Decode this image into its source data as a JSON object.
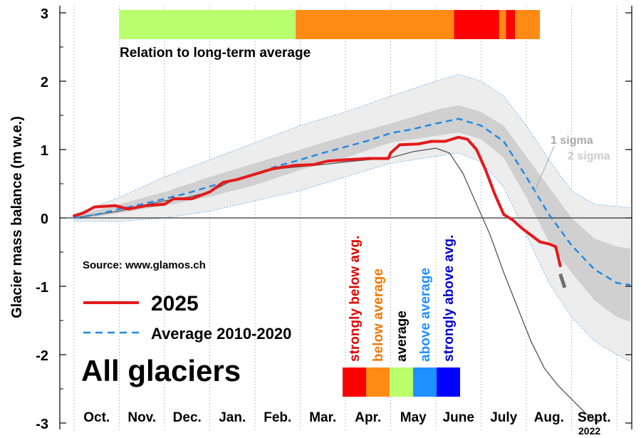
{
  "chart_data": {
    "type": "line",
    "ylabel": "Glacier mass balance (m w.e.)",
    "yticks": [
      3,
      2,
      1,
      0,
      -1,
      -2,
      -3
    ],
    "ylim": [
      -3,
      3
    ],
    "xlim": [
      0,
      12
    ],
    "months": [
      "Oct.",
      "Nov.",
      "Dec.",
      "Jan.",
      "Feb.",
      "Mar.",
      "Apr.",
      "May",
      "June",
      "July",
      "Aug.",
      "Sept."
    ],
    "source": "Source: www.glamos.ch",
    "panel_title": "All glaciers",
    "relation_label": "Relation to long-term average",
    "relation_bar": [
      {
        "from": 1.0,
        "to": 4.9,
        "color": "#b9ff6e"
      },
      {
        "from": 4.9,
        "to": 8.4,
        "color": "#ff8a14"
      },
      {
        "from": 8.4,
        "to": 9.4,
        "color": "#ff0000"
      },
      {
        "from": 9.4,
        "to": 9.55,
        "color": "#ff8a14"
      },
      {
        "from": 9.55,
        "to": 9.75,
        "color": "#ff0000"
      },
      {
        "from": 9.75,
        "to": 10.3,
        "color": "#ff8a14"
      }
    ],
    "sigma_labels": {
      "one": "1 sigma",
      "two": "2 sigma"
    },
    "year_2022_label": "2022",
    "category_legend": [
      {
        "label": "strongly below avg.",
        "color": "#ff0000",
        "text_color": "#e00000"
      },
      {
        "label": "below average",
        "color": "#ff8a14",
        "text_color": "#f07800"
      },
      {
        "label": "average",
        "color": "#b9ff6e",
        "text_color": "#000000"
      },
      {
        "label": "above average",
        "color": "#1e90ff",
        "text_color": "#1e90ff"
      },
      {
        "label": "strongly above avg.",
        "color": "#0000ff",
        "text_color": "#0000cc"
      }
    ],
    "series": [
      {
        "name": "2025",
        "color": "#e31a1c",
        "points": [
          [
            0,
            0.03
          ],
          [
            0.2,
            0.07
          ],
          [
            0.45,
            0.16
          ],
          [
            0.9,
            0.18
          ],
          [
            1.2,
            0.13
          ],
          [
            1.6,
            0.18
          ],
          [
            2.0,
            0.2
          ],
          [
            2.2,
            0.28
          ],
          [
            2.6,
            0.28
          ],
          [
            3.0,
            0.38
          ],
          [
            3.3,
            0.52
          ],
          [
            3.6,
            0.56
          ],
          [
            4.0,
            0.64
          ],
          [
            4.4,
            0.72
          ],
          [
            4.9,
            0.77
          ],
          [
            5.3,
            0.78
          ],
          [
            5.6,
            0.83
          ],
          [
            6.0,
            0.85
          ],
          [
            6.5,
            0.87
          ],
          [
            6.95,
            0.87
          ],
          [
            7.0,
            0.95
          ],
          [
            7.2,
            1.07
          ],
          [
            7.6,
            1.08
          ],
          [
            7.9,
            1.12
          ],
          [
            8.2,
            1.12
          ],
          [
            8.5,
            1.18
          ],
          [
            8.7,
            1.15
          ],
          [
            8.9,
            1.0
          ],
          [
            9.1,
            0.7
          ],
          [
            9.3,
            0.35
          ],
          [
            9.5,
            0.05
          ],
          [
            9.7,
            -0.03
          ],
          [
            9.9,
            -0.15
          ],
          [
            10.1,
            -0.25
          ],
          [
            10.3,
            -0.35
          ],
          [
            10.5,
            -0.38
          ],
          [
            10.65,
            -0.42
          ],
          [
            10.75,
            -0.7
          ]
        ]
      },
      {
        "name": "Average 2010-2020",
        "color": "#1e88e5",
        "points": [
          [
            0,
            0.0
          ],
          [
            0.5,
            0.05
          ],
          [
            1.0,
            0.13
          ],
          [
            1.5,
            0.2
          ],
          [
            2.0,
            0.28
          ],
          [
            2.5,
            0.36
          ],
          [
            3.0,
            0.46
          ],
          [
            3.5,
            0.55
          ],
          [
            4.0,
            0.64
          ],
          [
            4.5,
            0.76
          ],
          [
            5.0,
            0.85
          ],
          [
            5.5,
            0.95
          ],
          [
            6.0,
            1.04
          ],
          [
            6.5,
            1.13
          ],
          [
            7.0,
            1.24
          ],
          [
            7.5,
            1.3
          ],
          [
            8.0,
            1.38
          ],
          [
            8.5,
            1.45
          ],
          [
            9.0,
            1.35
          ],
          [
            9.5,
            1.12
          ],
          [
            10.0,
            0.6
          ],
          [
            10.5,
            0.05
          ],
          [
            11.0,
            -0.4
          ],
          [
            11.5,
            -0.75
          ],
          [
            12.0,
            -0.95
          ],
          [
            12.3,
            -0.98
          ]
        ]
      },
      {
        "name": "2022",
        "color": "#555555",
        "points": [
          [
            0,
            0.0
          ],
          [
            0.5,
            0.05
          ],
          [
            1.0,
            0.1
          ],
          [
            1.5,
            0.18
          ],
          [
            2.0,
            0.25
          ],
          [
            2.5,
            0.3
          ],
          [
            3.0,
            0.38
          ],
          [
            3.5,
            0.55
          ],
          [
            4.0,
            0.65
          ],
          [
            4.5,
            0.72
          ],
          [
            5.0,
            0.75
          ],
          [
            5.5,
            0.78
          ],
          [
            6.0,
            0.82
          ],
          [
            6.5,
            0.85
          ],
          [
            7.0,
            0.88
          ],
          [
            7.5,
            0.97
          ],
          [
            8.0,
            1.02
          ],
          [
            8.3,
            0.95
          ],
          [
            8.6,
            0.65
          ],
          [
            8.9,
            0.2
          ],
          [
            9.2,
            -0.25
          ],
          [
            9.5,
            -0.8
          ],
          [
            9.8,
            -1.3
          ],
          [
            10.1,
            -1.8
          ],
          [
            10.4,
            -2.2
          ],
          [
            10.7,
            -2.45
          ],
          [
            11.0,
            -2.65
          ],
          [
            11.3,
            -2.85
          ],
          [
            11.6,
            -3.0
          ]
        ]
      },
      {
        "name": "forecast",
        "color": "#707070",
        "points": [
          [
            10.75,
            -0.82
          ],
          [
            10.85,
            -1.02
          ]
        ]
      }
    ],
    "sigma1_band": {
      "x": [
        0,
        1,
        2,
        3,
        4,
        5,
        6,
        7,
        8,
        8.5,
        9,
        9.5,
        10,
        10.5,
        11,
        11.5,
        12,
        12.3
      ],
      "upper": [
        0.03,
        0.2,
        0.38,
        0.6,
        0.8,
        1.0,
        1.2,
        1.38,
        1.58,
        1.65,
        1.55,
        1.35,
        0.9,
        0.45,
        0.0,
        -0.3,
        -0.42,
        -0.45
      ],
      "lower": [
        -0.03,
        0.07,
        0.18,
        0.31,
        0.48,
        0.7,
        0.88,
        1.1,
        1.2,
        1.25,
        1.15,
        0.88,
        0.3,
        -0.35,
        -0.8,
        -1.2,
        -1.45,
        -1.52
      ]
    },
    "sigma2_band": {
      "x": [
        0,
        1,
        2,
        3,
        4,
        5,
        6,
        7,
        8,
        8.5,
        9,
        9.5,
        10,
        10.5,
        11,
        11.5,
        12,
        12.3
      ],
      "upper": [
        0.05,
        0.3,
        0.6,
        0.85,
        1.1,
        1.35,
        1.55,
        1.78,
        2.0,
        2.1,
        2.0,
        1.78,
        1.35,
        0.85,
        0.4,
        0.2,
        0.17,
        0.15
      ],
      "lower": [
        -0.05,
        -0.05,
        0.0,
        0.1,
        0.25,
        0.4,
        0.6,
        0.8,
        0.9,
        0.95,
        0.82,
        0.45,
        -0.25,
        -0.95,
        -1.45,
        -1.8,
        -2.0,
        -2.1
      ]
    }
  }
}
